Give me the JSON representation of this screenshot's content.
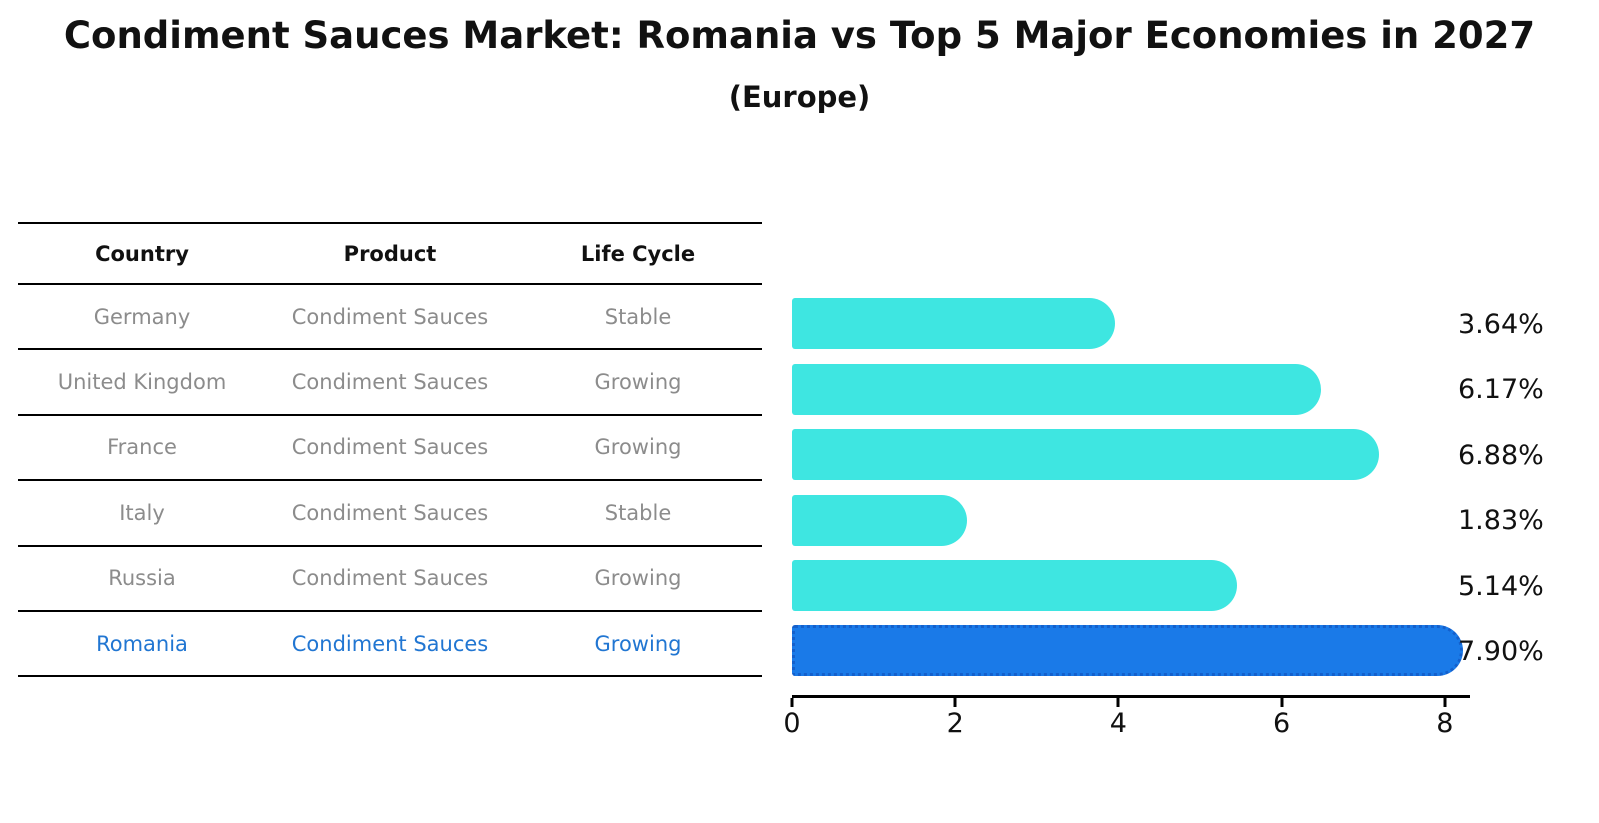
{
  "title": "Condiment Sauces Market: Romania vs Top 5 Major Economies in 2027",
  "subtitle": "(Europe)",
  "table": {
    "headers": [
      "Country",
      "Product",
      "Life Cycle"
    ],
    "rows": [
      {
        "country": "Germany",
        "product": "Condiment Sauces",
        "life_cycle": "Stable"
      },
      {
        "country": "United Kingdom",
        "product": "Condiment Sauces",
        "life_cycle": "Growing"
      },
      {
        "country": "France",
        "product": "Condiment Sauces",
        "life_cycle": "Growing"
      },
      {
        "country": "Italy",
        "product": "Condiment Sauces",
        "life_cycle": "Stable"
      },
      {
        "country": "Russia",
        "product": "Condiment Sauces",
        "life_cycle": "Growing"
      },
      {
        "country": "Romania",
        "product": "Condiment Sauces",
        "life_cycle": "Growing"
      }
    ],
    "highlight_index": 5
  },
  "chart_data": {
    "type": "bar",
    "orientation": "horizontal",
    "title": "Condiment Sauces Market: Romania vs Top 5 Major Economies in 2027 (Europe)",
    "categories": [
      "Germany",
      "United Kingdom",
      "France",
      "Italy",
      "Russia",
      "Romania"
    ],
    "values": [
      3.64,
      6.17,
      6.88,
      1.83,
      5.14,
      7.9
    ],
    "value_labels": [
      "3.64%",
      "6.17%",
      "6.88%",
      "1.83%",
      "5.14%",
      "7.90%"
    ],
    "xticks": [
      0,
      2,
      4,
      6,
      8
    ],
    "xlim": [
      0,
      8.3
    ],
    "grid": false,
    "legend": false,
    "highlight_index": 5,
    "bar_color": "#3EE6E1",
    "highlight_bar_color": "#1A7AE8",
    "highlight_border_color": "#1460CC"
  },
  "colors": {
    "text_primary": "#111111",
    "text_muted": "#8c8c8c",
    "highlight_text": "#2176D2",
    "line": "#000000",
    "background": "#ffffff"
  }
}
